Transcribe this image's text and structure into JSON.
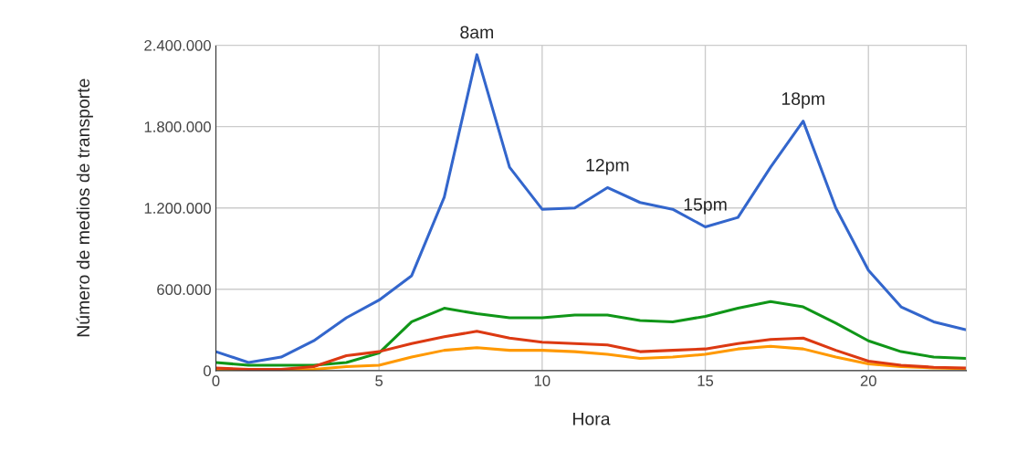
{
  "chart_data": {
    "type": "line",
    "xlabel": "Hora",
    "ylabel": "Número de medios de transporte",
    "x": [
      0,
      1,
      2,
      3,
      4,
      5,
      6,
      7,
      8,
      9,
      10,
      11,
      12,
      13,
      14,
      15,
      16,
      17,
      18,
      19,
      20,
      21,
      22,
      23
    ],
    "series": [
      {
        "color": "#3366cc",
        "values": [
          140000,
          60000,
          100000,
          220000,
          390000,
          520000,
          700000,
          1280000,
          2330000,
          1500000,
          1190000,
          1200000,
          1350000,
          1240000,
          1190000,
          1060000,
          1130000,
          1500000,
          1840000,
          1200000,
          740000,
          470000,
          360000,
          300000
        ]
      },
      {
        "color": "#109618",
        "values": [
          60000,
          40000,
          40000,
          40000,
          60000,
          130000,
          360000,
          460000,
          420000,
          390000,
          390000,
          410000,
          410000,
          370000,
          360000,
          400000,
          460000,
          510000,
          470000,
          350000,
          220000,
          140000,
          100000,
          90000
        ]
      },
      {
        "color": "#ff9900",
        "values": [
          10000,
          5000,
          5000,
          10000,
          30000,
          40000,
          100000,
          150000,
          170000,
          150000,
          150000,
          140000,
          120000,
          90000,
          100000,
          120000,
          160000,
          180000,
          160000,
          100000,
          50000,
          30000,
          20000,
          15000
        ]
      },
      {
        "color": "#dc3912",
        "values": [
          20000,
          10000,
          10000,
          30000,
          110000,
          140000,
          200000,
          250000,
          290000,
          240000,
          210000,
          200000,
          190000,
          140000,
          150000,
          160000,
          200000,
          230000,
          240000,
          150000,
          70000,
          40000,
          25000,
          20000
        ]
      }
    ],
    "xlim": [
      0,
      23
    ],
    "xticks": [
      0,
      5,
      10,
      15,
      20
    ],
    "ylim": [
      0,
      2400000
    ],
    "yticks": [
      {
        "value": 0,
        "label": "0"
      },
      {
        "value": 600000,
        "label": "600.000"
      },
      {
        "value": 1200000,
        "label": "1.200.000"
      },
      {
        "value": 1800000,
        "label": "1.800.000"
      },
      {
        "value": 2400000,
        "label": "2.400.000"
      }
    ],
    "grid": true,
    "annotations": [
      {
        "text": "8am",
        "x": 8,
        "y": 2330000
      },
      {
        "text": "12pm",
        "x": 12,
        "y": 1350000
      },
      {
        "text": "15pm",
        "x": 15,
        "y": 1060000
      },
      {
        "text": "18pm",
        "x": 18,
        "y": 1840000
      }
    ]
  }
}
